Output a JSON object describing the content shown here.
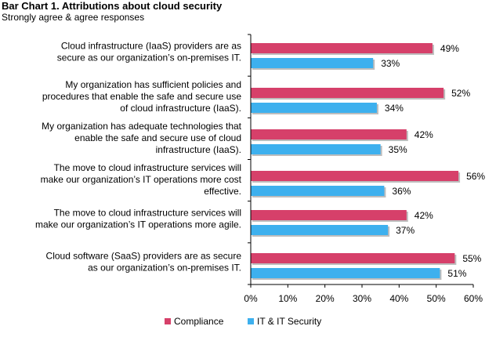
{
  "title": "Bar Chart 1. Attributions about cloud security",
  "subtitle": "Strongly agree & agree responses",
  "chart_data": {
    "type": "bar",
    "orientation": "horizontal",
    "categories": [
      [
        "Cloud infrastructure (IaaS) providers are as",
        "secure as our organization’s on-premises IT."
      ],
      [
        "My organization has sufficient policies and",
        "procedures that enable the safe and secure use",
        "of cloud infrastructure (IaaS)."
      ],
      [
        "My organization has adequate technologies that",
        "enable the safe and secure use of cloud",
        "infrastructure (IaaS)."
      ],
      [
        "The move to cloud infrastructure services will",
        "make our organization’s IT operations more cost",
        "effective."
      ],
      [
        "The move to cloud infrastructure services will",
        "make our organization’s IT operations more agile."
      ],
      [
        "Cloud software (SaaS) providers are as secure",
        "as our organization’s on-premises IT."
      ]
    ],
    "series": [
      {
        "name": "Compliance",
        "color": "#d6406a",
        "values": [
          49,
          52,
          42,
          56,
          42,
          55
        ]
      },
      {
        "name": "IT & IT Security",
        "color": "#3db0ee",
        "values": [
          33,
          34,
          35,
          36,
          37,
          51
        ]
      }
    ],
    "value_suffix": "%",
    "xlim": [
      0,
      60
    ],
    "xticks": [
      "0%",
      "10%",
      "20%",
      "30%",
      "40%",
      "50%",
      "60%"
    ],
    "grid": false,
    "legend_position": "bottom-center"
  }
}
